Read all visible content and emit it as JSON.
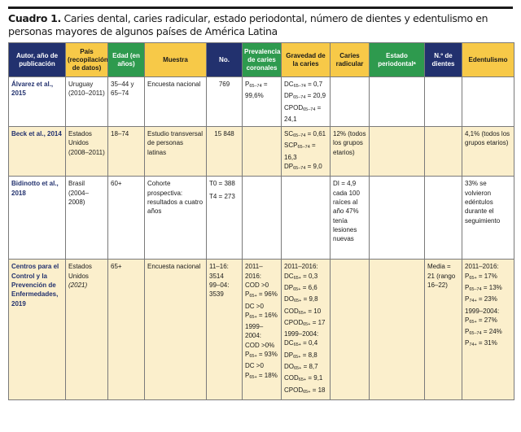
{
  "caption": {
    "label": "Cuadro 1.",
    "text": " Caries dental, caries radicular, estado periodontal, número de dientes y edentulismo en personas mayores de algunos países de América Latina"
  },
  "table": {
    "headers": [
      "Autor, año de publicación",
      "País (recopilación de datos)",
      "Edad (en años)",
      "Muestra",
      "No.",
      "Prevalencia de caries coronales",
      "Gravedad de la caries",
      "Caries radicular",
      "Estado periodontalᵃ",
      "N.º de dientes",
      "Edentulismo"
    ],
    "header_colors": {
      "navy": "#22316e",
      "yellow": "#f7c948",
      "green": "#2e9a4e",
      "row_shade": "#fbefcc"
    },
    "rows": [
      {
        "author": "Álvarez et al., 2015",
        "country": "Uruguay (2010–2011)",
        "age": "35–44 y 65–74",
        "sample": "Encuesta nacional",
        "number": "769",
        "prevalence": [
          "P65–74 = 99,6%"
        ],
        "severity": [
          "DC65–74 = 0,7",
          "DP65–74 = 20,9",
          "CPOD65–74 = 24,1"
        ],
        "root_caries": "",
        "periodontal": "",
        "teeth": "",
        "edentulism": ""
      },
      {
        "author": "Beck et al., 2014",
        "country": "Estados Unidos (2008–2011)",
        "age": "18–74",
        "sample": "Estudio transversal de personas latinas",
        "number": "15 848",
        "prevalence": [],
        "severity": [
          "SC65–74 = 0,61",
          "SCP65–74 = 16,3",
          "DP65–74 = 9,0"
        ],
        "root_caries": "12% (todos los grupos etarios)",
        "periodontal": "",
        "teeth": "",
        "edentulism": "4,1% (todos los grupos etarios)"
      },
      {
        "author": "Bidinotto et al., 2018",
        "country": "Brasil (2004–2008)",
        "age": "60+",
        "sample": "Cohorte prospectiva: resultados a cuatro años",
        "number": [
          "T0 = 388",
          "T4 = 273"
        ],
        "prevalence": [],
        "severity": [],
        "root_caries": "DI = 4,9 cada 100 raíces al año 47% tenía lesiones nuevas",
        "periodontal": "",
        "teeth": "",
        "edentulism": "33% se volvieron edéntulos durante el seguimiento"
      },
      {
        "author": "Centros para el Control y la Prevención de Enfermedades, 2019",
        "country": "Estados Unidos",
        "country_year": "(2021)",
        "age": "65+",
        "sample": "Encuesta nacional",
        "number": [
          "11–16:",
          "3514",
          "99–04:",
          "3539"
        ],
        "prevalence": [
          "2011–2016:",
          "COD >0",
          "P65+ = 96%",
          "DC >0",
          "P65+ = 16%",
          "1999–2004:",
          "COD >0%",
          "P65+ = 93%",
          "DC >0",
          "P65+ = 18%"
        ],
        "severity": [
          "2011–2016:",
          "DC65+ = 0,3",
          "DP65+ = 6,6",
          "DO65+ = 9,8",
          "COD65+ = 10",
          "CPOD65+ = 17",
          "1999–2004:",
          "DC65+ = 0,4",
          "DP65+ = 8,8",
          "DO65+ = 8,7",
          "COD65+ = 9,1",
          "CPOD65+ = 18"
        ],
        "root_caries": "",
        "periodontal": "",
        "teeth": "Media = 21 (rango 16–22)",
        "edentulism": [
          "2011–2016:",
          "P65+ = 17%",
          "P65–74 = 13%",
          "P74+ = 23%",
          "1999–2004:",
          "P65+ = 27%",
          "P65–74 = 24%",
          "P74+ = 31%"
        ]
      }
    ]
  }
}
